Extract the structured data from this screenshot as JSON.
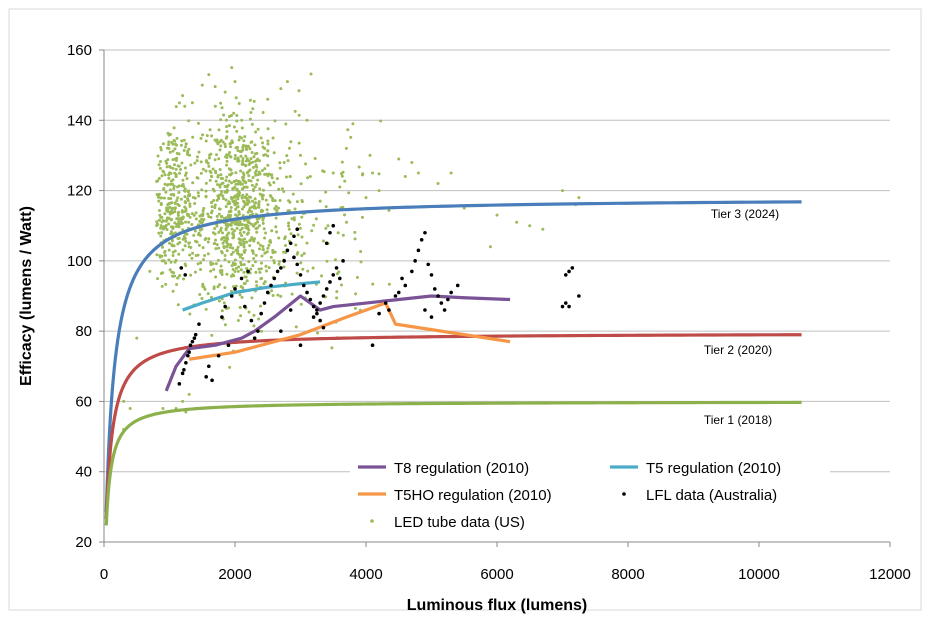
{
  "chart_data": {
    "type": "scatter",
    "title": "",
    "xlabel": "Luminous flux (lumens)",
    "ylabel": "Efficacy (lumens / Watt)",
    "xlim": [
      0,
      12000
    ],
    "ylim": [
      20,
      160
    ],
    "xticks": [
      0,
      2000,
      4000,
      6000,
      8000,
      10000,
      12000
    ],
    "yticks": [
      20,
      40,
      60,
      80,
      100,
      120,
      140,
      160
    ],
    "xtick_labels": [
      "0",
      "2000",
      "4000",
      "6000",
      "8000",
      "10000",
      "12000"
    ],
    "ytick_labels": [
      "20",
      "40",
      "60",
      "80",
      "100",
      "120",
      "140",
      "160"
    ],
    "grid": "horizontal",
    "legend_position": "bottom-right",
    "tier_curves": [
      {
        "label": "Tier  3 (2024)",
        "color": "#4a7ebb",
        "asymptote": 118,
        "k": 110,
        "x_start": 35,
        "x_end": 10650
      },
      {
        "label": "Tier  2 (2020)",
        "color": "#be4b48",
        "asymptote": 79.5,
        "k": 70,
        "x_start": 35,
        "x_end": 10650
      },
      {
        "label": "Tier  1 (2018)",
        "color": "#8cb04b",
        "asymptote": 60,
        "k": 50,
        "x_start": 35,
        "x_end": 10650
      }
    ],
    "series": [
      {
        "name": "T8 regulation (2010)",
        "color": "#7a5396",
        "x": [
          950,
          1100,
          1300,
          1500,
          1700,
          1900,
          2100,
          2300,
          2600,
          3000,
          3300,
          3500,
          4000,
          4500,
          5000,
          5500,
          6200
        ],
        "y": [
          63,
          70,
          75,
          75.5,
          76,
          77,
          78,
          80,
          84,
          90,
          86,
          87,
          88,
          89,
          90,
          89.5,
          89
        ]
      },
      {
        "name": "T5 regulation (2010)",
        "color": "#4aacc6",
        "x": [
          1200,
          1500,
          2000,
          2500,
          3000,
          3300
        ],
        "y": [
          86,
          88,
          91,
          92.5,
          93.5,
          94
        ]
      },
      {
        "name": "T5HO regulation (2010)",
        "color": "#f79646",
        "x": [
          1300,
          2000,
          3000,
          3700,
          4300,
          4450,
          6200
        ],
        "y": [
          72,
          74,
          79,
          84,
          88,
          82,
          77
        ]
      },
      {
        "name": "LFL data (Australia)",
        "color": "#000000",
        "points": [
          [
            1150,
            65
          ],
          [
            1200,
            68
          ],
          [
            1250,
            71
          ],
          [
            1300,
            74
          ],
          [
            1350,
            77
          ],
          [
            1400,
            79
          ],
          [
            1450,
            82
          ],
          [
            1220,
            69
          ],
          [
            1280,
            73
          ],
          [
            1320,
            76
          ],
          [
            1380,
            78
          ],
          [
            1180,
            98
          ],
          [
            1240,
            96
          ],
          [
            1560,
            67
          ],
          [
            1600,
            70
          ],
          [
            1750,
            73
          ],
          [
            1900,
            76
          ],
          [
            1800,
            84
          ],
          [
            1850,
            87
          ],
          [
            1950,
            90
          ],
          [
            2000,
            92
          ],
          [
            2100,
            95
          ],
          [
            2200,
            97
          ],
          [
            2150,
            87
          ],
          [
            2250,
            83
          ],
          [
            2300,
            78
          ],
          [
            2350,
            80
          ],
          [
            2400,
            85
          ],
          [
            2450,
            88
          ],
          [
            2500,
            91
          ],
          [
            2550,
            93
          ],
          [
            2600,
            95
          ],
          [
            2650,
            97
          ],
          [
            2700,
            98
          ],
          [
            2750,
            100
          ],
          [
            2800,
            103
          ],
          [
            2850,
            105
          ],
          [
            2900,
            107
          ],
          [
            2950,
            109
          ],
          [
            2900,
            101
          ],
          [
            2950,
            99
          ],
          [
            3000,
            96
          ],
          [
            3050,
            93
          ],
          [
            3100,
            91
          ],
          [
            3150,
            89
          ],
          [
            3200,
            87
          ],
          [
            3250,
            85
          ],
          [
            3300,
            88
          ],
          [
            3350,
            90
          ],
          [
            3400,
            92
          ],
          [
            3450,
            94
          ],
          [
            3500,
            96
          ],
          [
            3550,
            98
          ],
          [
            3600,
            95
          ],
          [
            3650,
            100
          ],
          [
            3300,
            83
          ],
          [
            3200,
            84
          ],
          [
            3250,
            86
          ],
          [
            3350,
            81
          ],
          [
            3450,
            108
          ],
          [
            3500,
            110
          ],
          [
            3400,
            105
          ],
          [
            3000,
            76
          ],
          [
            4100,
            76
          ],
          [
            4200,
            85
          ],
          [
            4300,
            88
          ],
          [
            4350,
            86
          ],
          [
            4450,
            90
          ],
          [
            4500,
            91
          ],
          [
            4550,
            95
          ],
          [
            4600,
            93
          ],
          [
            4700,
            97
          ],
          [
            4750,
            100
          ],
          [
            4800,
            103
          ],
          [
            4850,
            106
          ],
          [
            4900,
            108
          ],
          [
            4950,
            99
          ],
          [
            5000,
            96
          ],
          [
            5050,
            92
          ],
          [
            5100,
            90
          ],
          [
            5150,
            88
          ],
          [
            5200,
            86
          ],
          [
            5250,
            89
          ],
          [
            5300,
            91
          ],
          [
            5400,
            93
          ],
          [
            4900,
            86
          ],
          [
            5000,
            84
          ],
          [
            7000,
            87
          ],
          [
            7050,
            88
          ],
          [
            7100,
            87
          ],
          [
            7050,
            96
          ],
          [
            7100,
            97
          ],
          [
            7150,
            98
          ],
          [
            7250,
            90
          ],
          [
            1650,
            66
          ],
          [
            2850,
            86
          ],
          [
            2700,
            80
          ]
        ]
      },
      {
        "name": "LED tube data (US)",
        "color": "#9bbb59",
        "clusters": [
          {
            "cx": 1000,
            "cy": 116,
            "sx": 170,
            "sy": 12,
            "n": 260
          },
          {
            "cx": 1300,
            "cy": 113,
            "sx": 220,
            "sy": 11,
            "n": 120
          },
          {
            "cx": 2050,
            "cy": 116,
            "sx": 260,
            "sy": 12,
            "n": 480
          },
          {
            "cx": 2500,
            "cy": 112,
            "sx": 400,
            "sy": 12,
            "n": 160
          },
          {
            "cx": 1900,
            "cy": 98,
            "sx": 420,
            "sy": 9,
            "n": 90
          },
          {
            "cx": 3300,
            "cy": 110,
            "sx": 650,
            "sy": 15,
            "n": 90
          },
          {
            "cx": 1800,
            "cy": 133,
            "sx": 600,
            "sy": 10,
            "n": 70
          }
        ],
        "points": [
          [
            1600,
            153
          ],
          [
            1950,
            155
          ],
          [
            2000,
            151
          ],
          [
            2800,
            151
          ],
          [
            1850,
            148
          ],
          [
            1500,
            150
          ],
          [
            2700,
            149
          ],
          [
            1200,
            147
          ],
          [
            1350,
            145
          ],
          [
            1700,
            144
          ],
          [
            2500,
            146
          ],
          [
            3100,
            140
          ],
          [
            3800,
            139
          ],
          [
            4500,
            129
          ],
          [
            4700,
            128
          ],
          [
            5300,
            125
          ],
          [
            4200,
            120
          ],
          [
            4000,
            118
          ],
          [
            5500,
            115
          ],
          [
            6300,
            111
          ],
          [
            6500,
            110
          ],
          [
            6700,
            109
          ],
          [
            6000,
            113
          ],
          [
            7000,
            120
          ],
          [
            7200,
            116
          ],
          [
            7250,
            118
          ],
          [
            5900,
            104
          ],
          [
            4100,
            125
          ],
          [
            3500,
            125
          ],
          [
            3700,
            132
          ],
          [
            4600,
            124
          ],
          [
            5100,
            122
          ],
          [
            3000,
            130
          ],
          [
            1200,
            60
          ],
          [
            1100,
            58
          ],
          [
            1300,
            62
          ],
          [
            1250,
            57
          ],
          [
            900,
            58
          ],
          [
            300,
            60
          ],
          [
            400,
            58
          ],
          [
            300,
            52
          ],
          [
            500,
            78
          ],
          [
            700,
            97
          ],
          [
            3600,
            121
          ],
          [
            4800,
            125
          ],
          [
            3300,
            117
          ],
          [
            3150,
            124
          ]
        ]
      }
    ],
    "legend": [
      {
        "label": "T8 regulation (2010)",
        "kind": "line",
        "color": "#7a5396"
      },
      {
        "label": "T5 regulation (2010)",
        "kind": "line",
        "color": "#4aacc6"
      },
      {
        "label": "T5HO regulation (2010)",
        "kind": "line",
        "color": "#f79646"
      },
      {
        "label": "LFL data (Australia)",
        "kind": "marker",
        "color": "#000000"
      },
      {
        "label": "LED tube data (US)",
        "kind": "marker",
        "color": "#9bbb59"
      }
    ]
  }
}
